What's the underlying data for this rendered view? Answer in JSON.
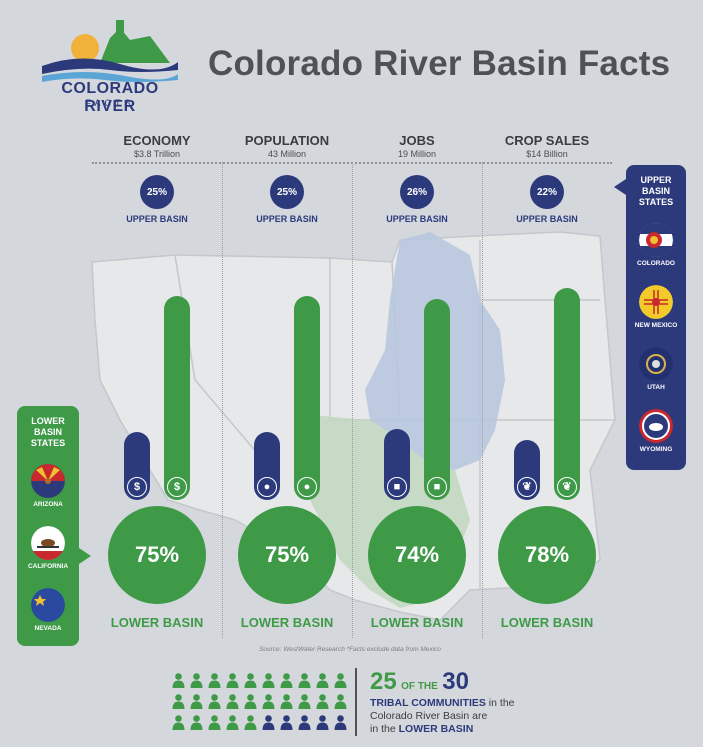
{
  "header": {
    "title": "Colorado River Basin Facts",
    "logo_line1": "COLORADO RIVER",
    "logo_line2": "FACTS"
  },
  "colors": {
    "upper_basin": "#2c3a7c",
    "lower_basin": "#3f9a48",
    "background": "#d4d8dc"
  },
  "chart_data": {
    "type": "bar",
    "categories": [
      "ECONOMY",
      "POPULATION",
      "JOBS",
      "CROP SALES"
    ],
    "subtitles": [
      "$3.8 Trillion",
      "43 Million",
      "19 Million",
      "$14 Billion"
    ],
    "icons": [
      "dollar-icon",
      "person-icon",
      "briefcase-icon",
      "leaf-icon"
    ],
    "series": [
      {
        "name": "UPPER BASIN",
        "values": [
          25,
          25,
          26,
          22
        ],
        "labels": [
          "25%",
          "25%",
          "26%",
          "22%"
        ]
      },
      {
        "name": "LOWER BASIN",
        "values": [
          75,
          75,
          74,
          78
        ],
        "labels": [
          "75%",
          "75%",
          "74%",
          "78%"
        ]
      }
    ],
    "ylim": [
      0,
      100
    ]
  },
  "upper_states": {
    "title": [
      "UPPER",
      "BASIN",
      "STATES"
    ],
    "states": [
      "COLORADO",
      "NEW MEXICO",
      "UTAH",
      "WYOMING"
    ]
  },
  "lower_states": {
    "title": [
      "LOWER",
      "BASIN",
      "STATES"
    ],
    "states": [
      "ARIZONA",
      "CALIFORNIA",
      "NEVADA"
    ]
  },
  "source_note": "Source: WestWater Research   *Facts exclude data from Mexico",
  "tribal": {
    "count": "25",
    "of_the": "OF THE",
    "total": "30",
    "total_communities": 30,
    "lower_communities": 25,
    "line2_bold": "TRIBAL COMMUNITIES",
    "line2_rest": " in the",
    "line3": "Colorado River Basin are",
    "line4_pre": "in the ",
    "line4_bold": "LOWER BASIN"
  }
}
